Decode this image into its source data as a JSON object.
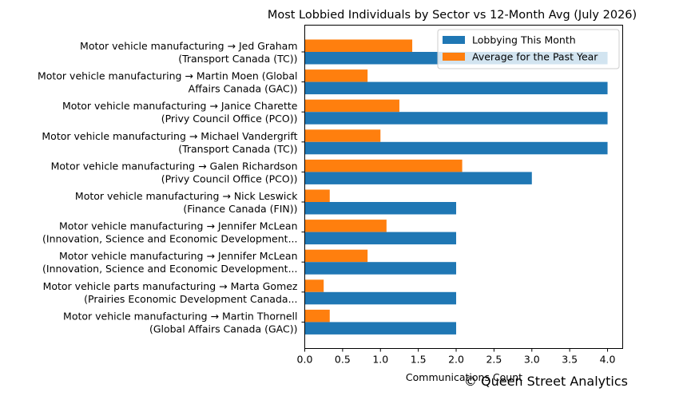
{
  "chart_data": {
    "type": "bar",
    "orientation": "horizontal",
    "title": "Most Lobbied Individuals by Sector vs 12-Month Avg (July 2026)",
    "xlabel": "Communications Count",
    "ylabel": "",
    "xlim": [
      0,
      4.2
    ],
    "xticks": [
      0.0,
      0.5,
      1.0,
      1.5,
      2.0,
      2.5,
      3.0,
      3.5,
      4.0
    ],
    "xtick_labels": [
      "0.0",
      "0.5",
      "1.0",
      "1.5",
      "2.0",
      "2.5",
      "3.0",
      "3.5",
      "4.0"
    ],
    "grid": false,
    "legend_position": "top-right",
    "categories": [
      [
        "Motor vehicle manufacturing → Jed Graham",
        "(Transport Canada (TC))"
      ],
      [
        "Motor vehicle manufacturing → Martin Moen (Global",
        "Affairs Canada (GAC))"
      ],
      [
        "Motor vehicle manufacturing → Janice Charette",
        "(Privy Council Office (PCO))"
      ],
      [
        "Motor vehicle manufacturing → Michael Vandergrift",
        "(Transport Canada (TC))"
      ],
      [
        "Motor vehicle manufacturing → Galen Richardson",
        "(Privy Council Office (PCO))"
      ],
      [
        "Motor vehicle manufacturing → Nick Leswick",
        "(Finance Canada (FIN))"
      ],
      [
        "Motor vehicle manufacturing → Jennifer McLean",
        "(Innovation, Science and Economic Development..."
      ],
      [
        "Motor vehicle manufacturing → Jennifer McLean",
        "(Innovation, Science and Economic Development..."
      ],
      [
        "Motor vehicle parts manufacturing → Marta Gomez",
        "(Prairies Economic Development Canada..."
      ],
      [
        "Motor vehicle manufacturing → Martin Thornell",
        "(Global Affairs Canada (GAC))"
      ]
    ],
    "series": [
      {
        "name": "Lobbying This Month",
        "color": "#1f77b4",
        "values": [
          4,
          4,
          4,
          4,
          3,
          2,
          2,
          2,
          2,
          2
        ]
      },
      {
        "name": "Average for the Past Year",
        "color": "#ff7f0e",
        "values": [
          1.42,
          0.83,
          1.25,
          1.0,
          2.08,
          0.33,
          1.08,
          0.83,
          0.25,
          0.33
        ]
      }
    ]
  },
  "watermark": "© Queen Street Analytics"
}
